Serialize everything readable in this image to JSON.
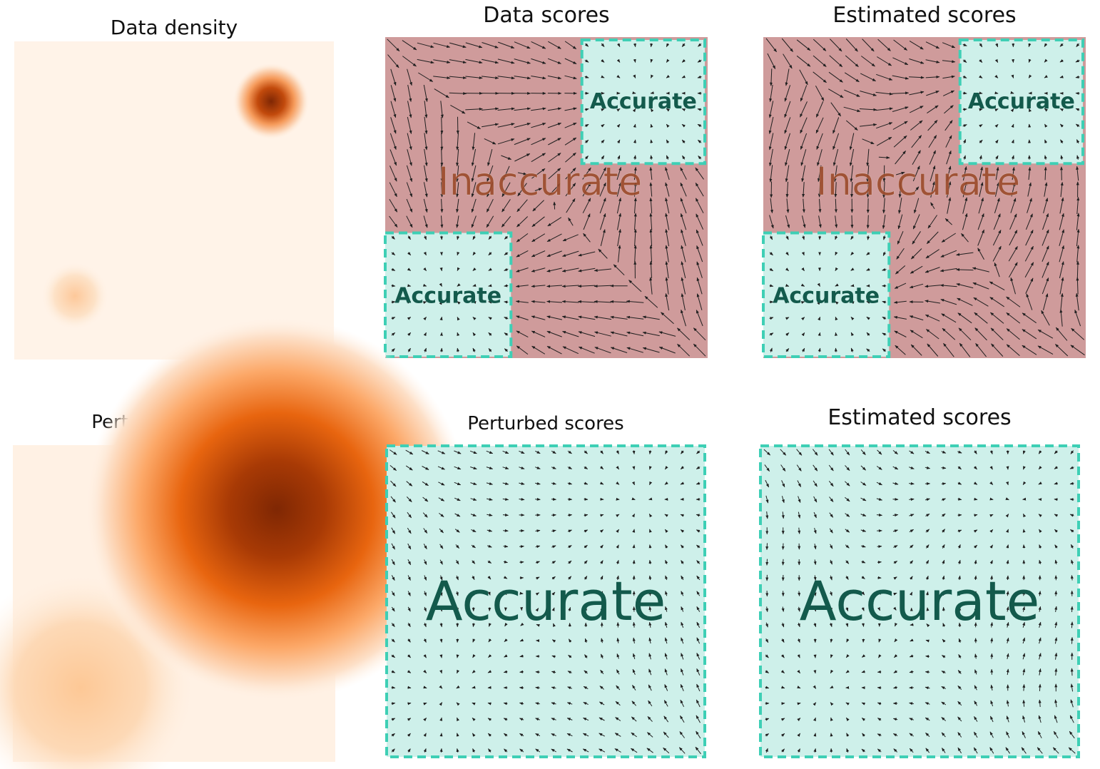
{
  "panels": [
    {
      "id": "p1",
      "title": "Data density",
      "type": "density",
      "variant": "sharp"
    },
    {
      "id": "p2",
      "title": "Data scores",
      "type": "scores",
      "variant": "data",
      "regions": "split"
    },
    {
      "id": "p3",
      "title": "Estimated scores",
      "type": "scores",
      "variant": "estimated",
      "regions": "split"
    },
    {
      "id": "p4",
      "title": "Perturbed density",
      "type": "density",
      "variant": "smooth"
    },
    {
      "id": "p5",
      "title": "Perturbed scores",
      "type": "scores",
      "variant": "data",
      "regions": "full"
    },
    {
      "id": "p6",
      "title": "Estimated scores",
      "type": "scores",
      "variant": "estimated",
      "regions": "full"
    }
  ],
  "labels": {
    "accurate": "Accurate",
    "inaccurate": "Inaccurate"
  },
  "colors": {
    "accurate_fill": "#cef0ea",
    "accurate_border": "#3ecfb5",
    "accurate_text": "#135a4c",
    "inaccurate_fill": "#cf9b9b",
    "inaccurate_text": "#9a4a2a",
    "arrow": "#1f1f1f",
    "density_low": "#fff3e8",
    "density_mid": "#f9a15e",
    "density_high": "#7f2704"
  }
}
